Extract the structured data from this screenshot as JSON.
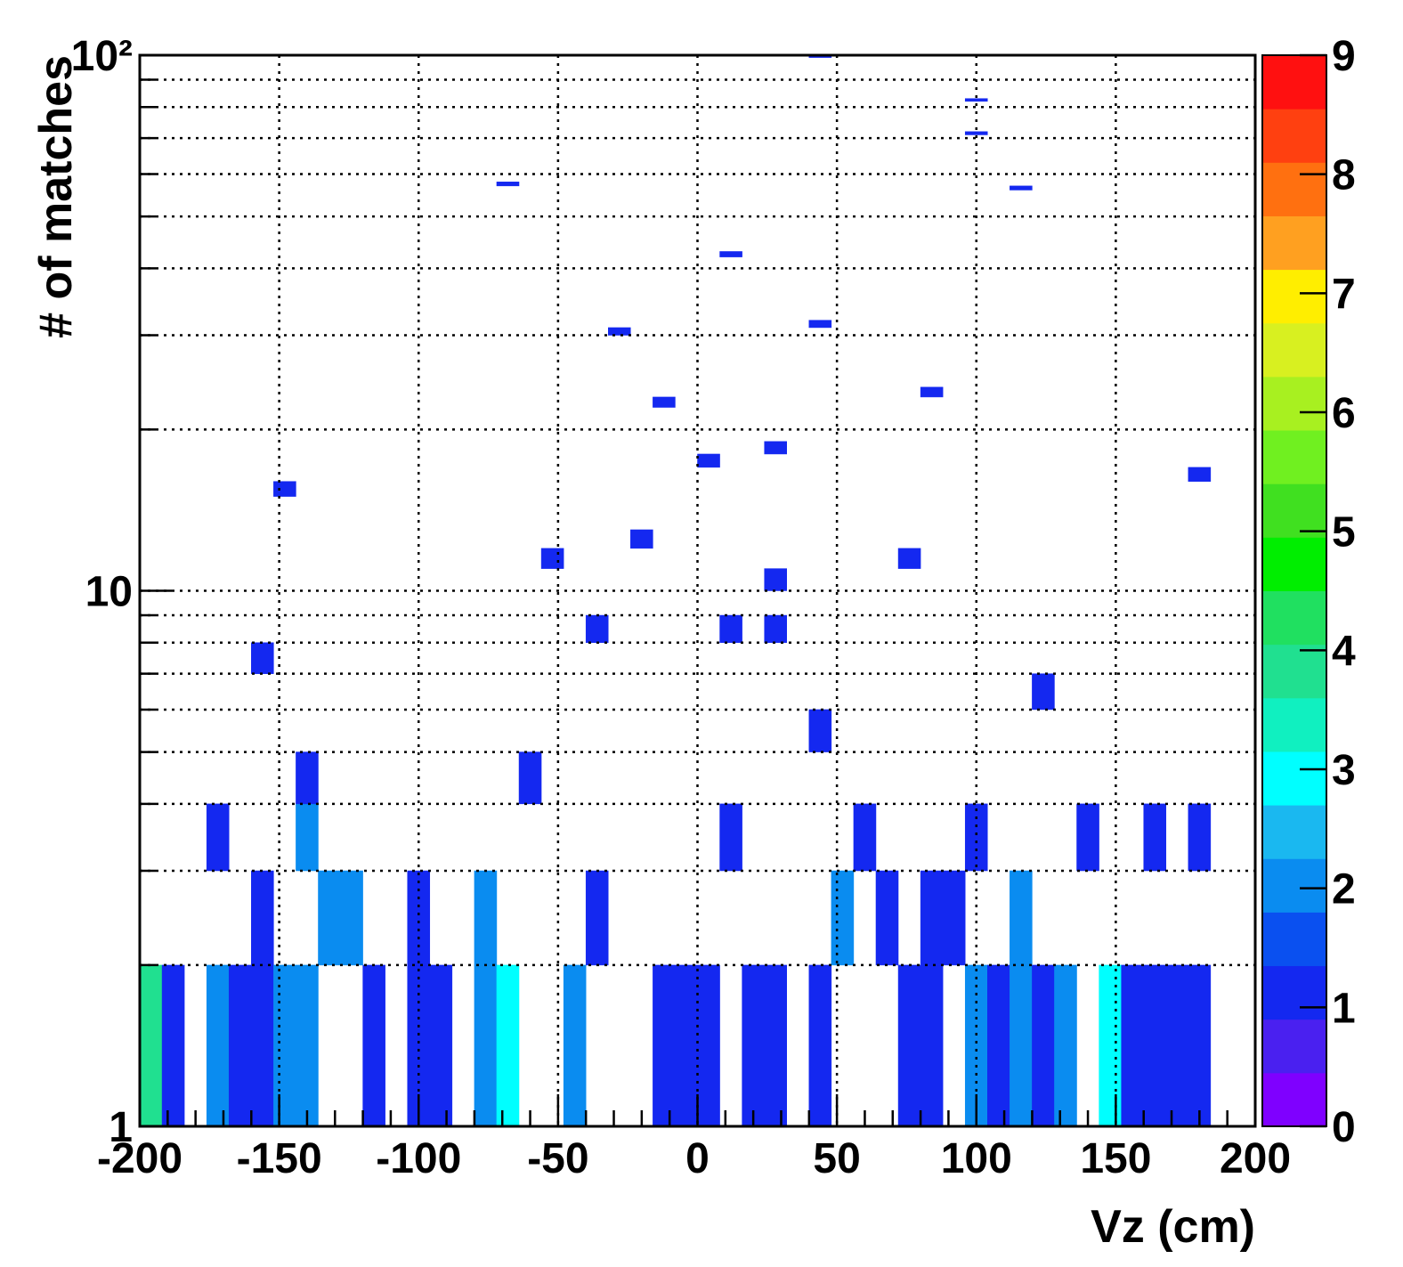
{
  "chart_data": {
    "type": "heatmap",
    "x_label": "Vz (cm)",
    "y_label": "# of matches",
    "xlim": [
      -200,
      200
    ],
    "xticks": [
      -200,
      -150,
      -100,
      -50,
      0,
      50,
      100,
      150,
      200
    ],
    "xminor": [
      -190,
      -180,
      -170,
      -160,
      -140,
      -130,
      -120,
      -110,
      -90,
      -80,
      -70,
      -60,
      -40,
      -30,
      -20,
      -10,
      10,
      20,
      30,
      40,
      60,
      70,
      80,
      90,
      110,
      120,
      130,
      140,
      160,
      170,
      180,
      190
    ],
    "ylim": [
      1,
      100
    ],
    "log_y": true,
    "yticks": [
      1,
      10,
      {
        "value": 100,
        "label": "10²"
      }
    ],
    "yminor": [
      2,
      3,
      4,
      5,
      6,
      7,
      8,
      9,
      20,
      30,
      40,
      50,
      60,
      70,
      80,
      90
    ],
    "grid": true,
    "zlim": [
      0,
      9
    ],
    "zticks": [
      0,
      1,
      2,
      3,
      4,
      5,
      6,
      7,
      8,
      9
    ],
    "palette": [
      "#7f00ff",
      "#4a20f0",
      "#1428f0",
      "#0a50f0",
      "#0a8cf0",
      "#1ab8f0",
      "#00ffff",
      "#10f0c0",
      "#20e090",
      "#20e060",
      "#00ee00",
      "#40e020",
      "#70f020",
      "#a8f020",
      "#d8f020",
      "#ffee00",
      "#ffa020",
      "#ff7010",
      "#ff4010",
      "#ff1010"
    ],
    "cells": [
      {
        "x": [
          -200,
          -192
        ],
        "y": [
          1,
          2
        ],
        "z": 4
      },
      {
        "x": [
          -192,
          -184
        ],
        "y": [
          1,
          2
        ],
        "z": 1
      },
      {
        "x": [
          -176,
          -168
        ],
        "y": [
          1,
          2
        ],
        "z": 2
      },
      {
        "x": [
          -168,
          -152
        ],
        "y": [
          1,
          2
        ],
        "z": 1
      },
      {
        "x": [
          -152,
          -136
        ],
        "y": [
          1,
          2
        ],
        "z": 2
      },
      {
        "x": [
          -120,
          -112
        ],
        "y": [
          1,
          2
        ],
        "z": 1
      },
      {
        "x": [
          -104,
          -88
        ],
        "y": [
          1,
          2
        ],
        "z": 1
      },
      {
        "x": [
          -80,
          -72
        ],
        "y": [
          1,
          2
        ],
        "z": 2
      },
      {
        "x": [
          -72,
          -64
        ],
        "y": [
          1,
          2
        ],
        "z": 3
      },
      {
        "x": [
          -48,
          -40
        ],
        "y": [
          1,
          2
        ],
        "z": 2
      },
      {
        "x": [
          -16,
          8
        ],
        "y": [
          1,
          2
        ],
        "z": 1
      },
      {
        "x": [
          16,
          32
        ],
        "y": [
          1,
          2
        ],
        "z": 1
      },
      {
        "x": [
          40,
          48
        ],
        "y": [
          1,
          2
        ],
        "z": 1
      },
      {
        "x": [
          72,
          88
        ],
        "y": [
          1,
          2
        ],
        "z": 1
      },
      {
        "x": [
          96,
          104
        ],
        "y": [
          1,
          2
        ],
        "z": 2
      },
      {
        "x": [
          104,
          112
        ],
        "y": [
          1,
          2
        ],
        "z": 1
      },
      {
        "x": [
          112,
          120
        ],
        "y": [
          1,
          2
        ],
        "z": 2
      },
      {
        "x": [
          120,
          128
        ],
        "y": [
          1,
          2
        ],
        "z": 1
      },
      {
        "x": [
          128,
          136
        ],
        "y": [
          1,
          2
        ],
        "z": 2
      },
      {
        "x": [
          144,
          152
        ],
        "y": [
          1,
          2
        ],
        "z": 3
      },
      {
        "x": [
          152,
          184
        ],
        "y": [
          1,
          2
        ],
        "z": 1
      },
      {
        "x": [
          -160,
          -152
        ],
        "y": [
          2,
          3
        ],
        "z": 1
      },
      {
        "x": [
          -136,
          -120
        ],
        "y": [
          2,
          3
        ],
        "z": 2
      },
      {
        "x": [
          -104,
          -96
        ],
        "y": [
          2,
          3
        ],
        "z": 1
      },
      {
        "x": [
          -80,
          -72
        ],
        "y": [
          2,
          3
        ],
        "z": 2
      },
      {
        "x": [
          -40,
          -32
        ],
        "y": [
          2,
          3
        ],
        "z": 1
      },
      {
        "x": [
          48,
          56
        ],
        "y": [
          2,
          3
        ],
        "z": 2
      },
      {
        "x": [
          64,
          72
        ],
        "y": [
          2,
          3
        ],
        "z": 1
      },
      {
        "x": [
          80,
          96
        ],
        "y": [
          2,
          3
        ],
        "z": 1
      },
      {
        "x": [
          112,
          120
        ],
        "y": [
          2,
          3
        ],
        "z": 2
      },
      {
        "x": [
          -176,
          -168
        ],
        "y": [
          3,
          4
        ],
        "z": 1
      },
      {
        "x": [
          -144,
          -136
        ],
        "y": [
          3,
          4
        ],
        "z": 2
      },
      {
        "x": [
          8,
          16
        ],
        "y": [
          3,
          4
        ],
        "z": 1
      },
      {
        "x": [
          56,
          64
        ],
        "y": [
          3,
          4
        ],
        "z": 1
      },
      {
        "x": [
          96,
          104
        ],
        "y": [
          3,
          4
        ],
        "z": 1
      },
      {
        "x": [
          136,
          144
        ],
        "y": [
          3,
          4
        ],
        "z": 1
      },
      {
        "x": [
          160,
          168
        ],
        "y": [
          3,
          4
        ],
        "z": 1
      },
      {
        "x": [
          176,
          184
        ],
        "y": [
          3,
          4
        ],
        "z": 1
      },
      {
        "x": [
          -144,
          -136
        ],
        "y": [
          4,
          5
        ],
        "z": 1
      },
      {
        "x": [
          -64,
          -56
        ],
        "y": [
          4,
          5
        ],
        "z": 1
      },
      {
        "x": [
          40,
          48
        ],
        "y": [
          5,
          6
        ],
        "z": 1
      },
      {
        "x": [
          120,
          128
        ],
        "y": [
          6,
          7
        ],
        "z": 1
      },
      {
        "x": [
          -160,
          -152
        ],
        "y": [
          7,
          8
        ],
        "z": 1
      },
      {
        "x": [
          -40,
          -32
        ],
        "y": [
          8,
          9
        ],
        "z": 1
      },
      {
        "x": [
          8,
          16
        ],
        "y": [
          8,
          9
        ],
        "z": 1
      },
      {
        "x": [
          24,
          32
        ],
        "y": [
          8,
          9
        ],
        "z": 1
      },
      {
        "x": [
          24,
          32
        ],
        "y": [
          10,
          11
        ],
        "z": 1
      },
      {
        "x": [
          -56,
          -48
        ],
        "y": [
          11,
          12
        ],
        "z": 1
      },
      {
        "x": [
          72,
          80
        ],
        "y": [
          11,
          12
        ],
        "z": 1
      },
      {
        "x": [
          -24,
          -16
        ],
        "y": [
          12,
          13
        ],
        "z": 1
      },
      {
        "x": [
          -152,
          -144
        ],
        "y": [
          15,
          16
        ],
        "z": 1
      },
      {
        "x": [
          176,
          184
        ],
        "y": [
          16,
          17
        ],
        "z": 1
      },
      {
        "x": [
          0,
          8
        ],
        "y": [
          17,
          18
        ],
        "z": 1
      },
      {
        "x": [
          24,
          32
        ],
        "y": [
          18,
          19
        ],
        "z": 1
      },
      {
        "x": [
          -16,
          -8
        ],
        "y": [
          22,
          23
        ],
        "z": 1
      },
      {
        "x": [
          80,
          88
        ],
        "y": [
          23,
          24
        ],
        "z": 1
      },
      {
        "x": [
          -32,
          -24
        ],
        "y": [
          30,
          31
        ],
        "z": 1
      },
      {
        "x": [
          40,
          48
        ],
        "y": [
          31,
          32
        ],
        "z": 1
      },
      {
        "x": [
          8,
          16
        ],
        "y": [
          42,
          43
        ],
        "z": 1
      },
      {
        "x": [
          112,
          120
        ],
        "y": [
          56,
          57
        ],
        "z": 1
      },
      {
        "x": [
          -72,
          -64
        ],
        "y": [
          57,
          58
        ],
        "z": 1
      },
      {
        "x": [
          96,
          104
        ],
        "y": [
          71,
          72
        ],
        "z": 1
      },
      {
        "x": [
          96,
          104
        ],
        "y": [
          82,
          83
        ],
        "z": 1
      },
      {
        "x": [
          40,
          48
        ],
        "y": [
          99,
          100
        ],
        "z": 1
      }
    ]
  }
}
